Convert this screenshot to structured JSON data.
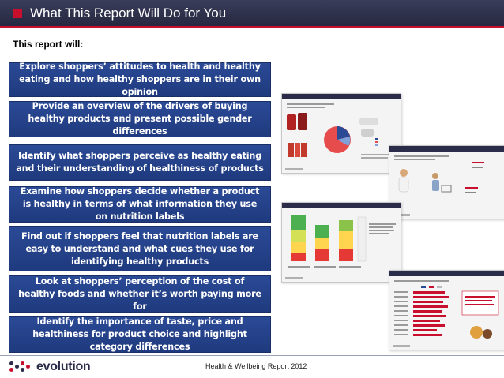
{
  "header": {
    "title": "What This Report Will Do for You"
  },
  "intro": "This report will:",
  "items": [
    "Explore shoppers’ attitudes to health and healthy eating and how healthy shoppers are in their own opinion",
    "Provide an overview of the drivers of buying healthy products and present possible gender differences",
    "Identify what shoppers perceive as healthy eating and their understanding of healthiness of products",
    "Examine how shoppers decide whether a product is healthy in terms of what information they use on nutrition labels",
    "Find out if shoppers feel that nutrition labels are easy to understand and what cues they use for identifying healthy products",
    "Look at shoppers’ perception of the cost of healthy foods and whether it’s worth paying more for",
    "Identify the importance of taste, price and healthiness for product choice and highlight category differences"
  ],
  "footer": {
    "logo_text": "evolution",
    "report_name": "Health & Wellbeing Report 2012"
  },
  "colors": {
    "title_bar": "#2c2e48",
    "accent_red": "#c8102e",
    "item_box": "#2b4a96"
  }
}
